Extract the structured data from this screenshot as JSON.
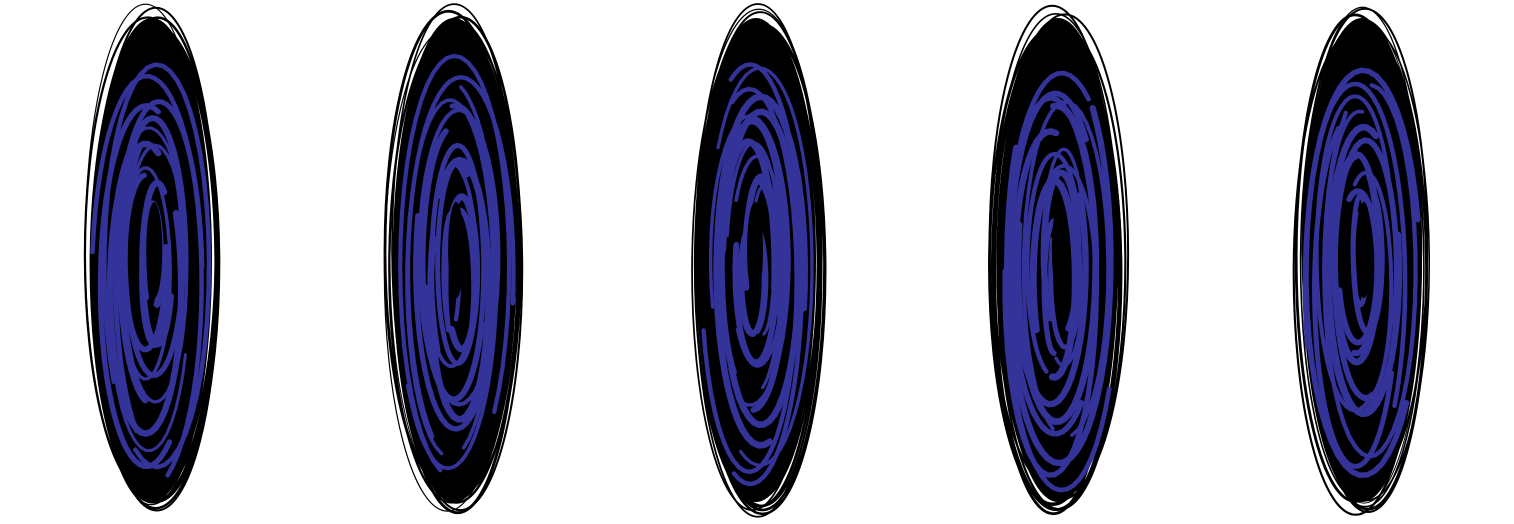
{
  "scene": {
    "background": "#ffffff",
    "figure_count": 5,
    "figures": [
      {
        "name": "spiral-figure-1",
        "body_color": "#000000",
        "spiral_color": "#333399",
        "seed": 11
      },
      {
        "name": "spiral-figure-2",
        "body_color": "#000000",
        "spiral_color": "#333399",
        "seed": 23
      },
      {
        "name": "spiral-figure-3",
        "body_color": "#000000",
        "spiral_color": "#333399",
        "seed": 37
      },
      {
        "name": "spiral-figure-4",
        "body_color": "#000000",
        "spiral_color": "#333399",
        "seed": 51
      },
      {
        "name": "spiral-figure-5",
        "body_color": "#000000",
        "spiral_color": "#333399",
        "seed": 67
      }
    ]
  }
}
